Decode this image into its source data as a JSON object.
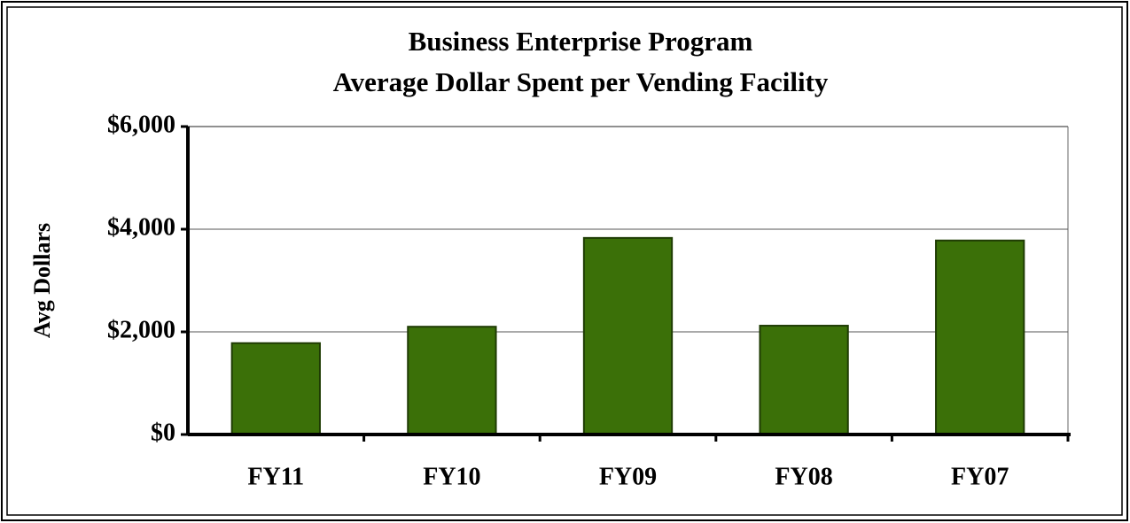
{
  "chart_data": {
    "type": "bar",
    "title": "Business Enterprise Program",
    "subtitle": "Average Dollar Spent per Vending Facility",
    "y_label": "Avg Dollars",
    "categories": [
      "FY11",
      "FY10",
      "FY09",
      "FY08",
      "FY07"
    ],
    "values": [
      1780,
      2100,
      3830,
      2120,
      3780
    ],
    "color": "#3b7008",
    "ylim": [
      0,
      6000
    ],
    "yticks": [
      {
        "value": 0,
        "label": "$0"
      },
      {
        "value": 2000,
        "label": "$2,000"
      },
      {
        "value": 4000,
        "label": "$4,000"
      },
      {
        "value": 6000,
        "label": "$6,000"
      }
    ],
    "grid": true
  }
}
